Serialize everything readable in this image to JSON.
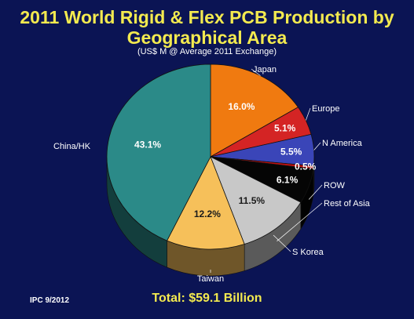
{
  "header": {
    "title_line1": "2011 World Rigid & Flex PCB Production by",
    "title_line2": "Geographical Area",
    "subtitle": "(US$ M @ Average 2011 Exchange)"
  },
  "footer": {
    "source": "IPC 9/2012",
    "total": "Total: $59.1 Billion"
  },
  "chart_data": {
    "type": "pie",
    "title": "2011 World Rigid & Flex PCB Production by Geographical Area",
    "subtitle": "(US$ M @ Average 2011 Exchange)",
    "unit": "%",
    "slices": [
      {
        "name": "Japan",
        "value": 16.0,
        "label": "16.0%",
        "color": "#f07a10"
      },
      {
        "name": "Europe",
        "value": 5.1,
        "label": "5.1%",
        "color": "#d42424"
      },
      {
        "name": "N America",
        "value": 5.5,
        "label": "5.5%",
        "color": "#3a45b8"
      },
      {
        "name": "",
        "value": 0.5,
        "label": "0.5%",
        "color": "#c01010"
      },
      {
        "name": "ROW",
        "value": 6.1,
        "label": "6.1%",
        "color": "#050505"
      },
      {
        "name": "Rest of Asia",
        "value": 11.5,
        "label": "11.5%",
        "color": "#c8c8c8"
      },
      {
        "name": "S Korea",
        "value": 0.0,
        "label": "",
        "color": "#c8c8c8"
      },
      {
        "name": "Taiwan",
        "value": 12.2,
        "label": "12.2%",
        "color": "#f6c05a"
      },
      {
        "name": "China/HK",
        "value": 43.1,
        "label": "43.1%",
        "color": "#2b8a88"
      }
    ],
    "legend": "none"
  }
}
